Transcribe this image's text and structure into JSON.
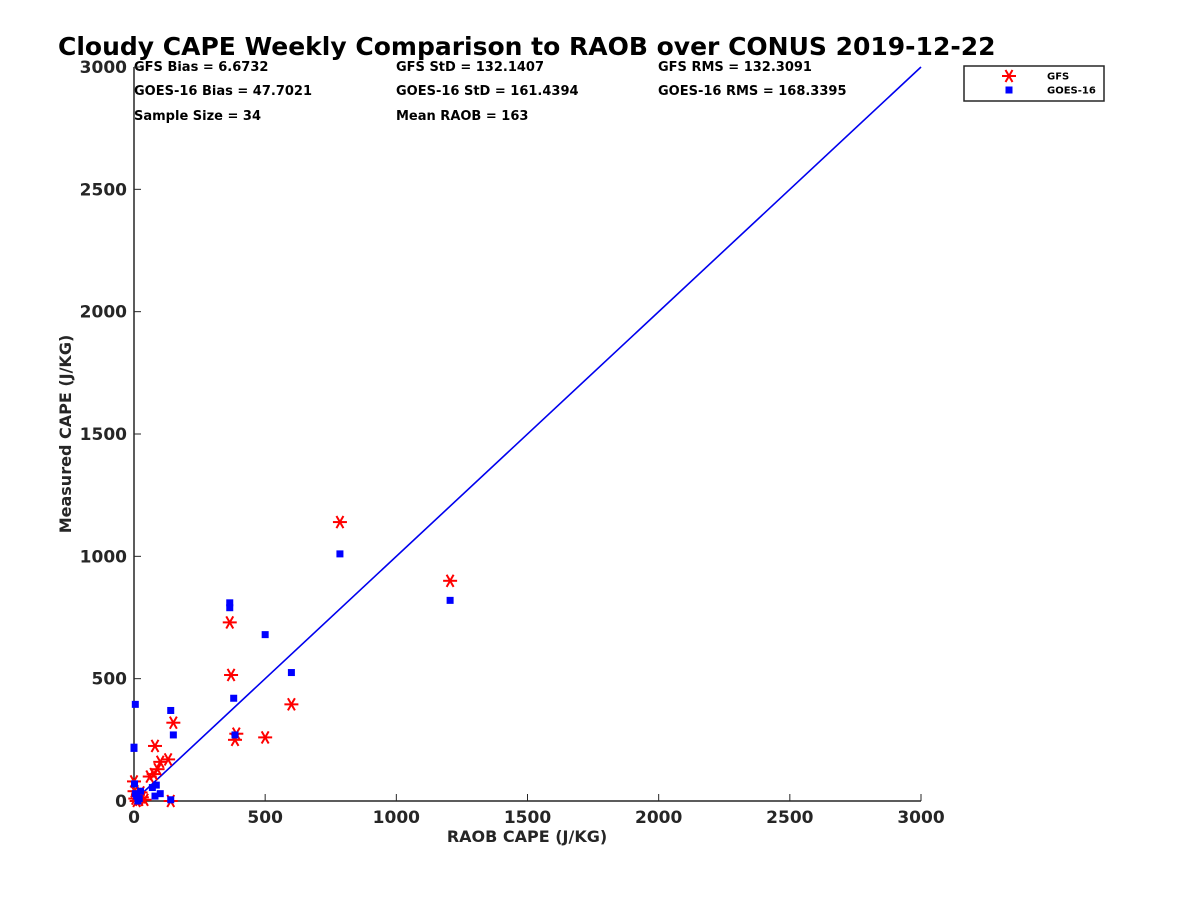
{
  "chart_data": {
    "type": "scatter",
    "title": "Cloudy CAPE Weekly Comparison to RAOB over CONUS 2019-12-22",
    "xlabel": "RAOB CAPE (J/KG)",
    "ylabel": "Measured CAPE (J/KG)",
    "xlim": [
      0,
      3000
    ],
    "ylim": [
      0,
      3000
    ],
    "xticks": [
      0,
      500,
      1000,
      1500,
      2000,
      2500,
      3000
    ],
    "yticks": [
      0,
      500,
      1000,
      1500,
      2000,
      2500,
      3000
    ],
    "grid": false,
    "legend_position": "top-right",
    "reference_line": {
      "color": "#0000ee",
      "points": [
        [
          0,
          0
        ],
        [
          3000,
          3000
        ]
      ]
    },
    "stats": [
      {
        "text": "GFS Bias = 6.6732"
      },
      {
        "text": "GFS StD = 132.1407"
      },
      {
        "text": "GFS RMS = 132.3091"
      },
      {
        "text": "GOES-16 Bias = 47.7021"
      },
      {
        "text": "GOES-16 StD = 161.4394"
      },
      {
        "text": "GOES-16 RMS = 168.3395"
      },
      {
        "text": "Sample Size = 34"
      },
      {
        "text": "Mean RAOB = 163"
      }
    ],
    "series": [
      {
        "name": "GFS",
        "color": "#ff0000",
        "marker": "asterisk",
        "points": [
          [
            0,
            80
          ],
          [
            2,
            40
          ],
          [
            5,
            10
          ],
          [
            10,
            0
          ],
          [
            15,
            25
          ],
          [
            20,
            5
          ],
          [
            25,
            35
          ],
          [
            30,
            15
          ],
          [
            40,
            5
          ],
          [
            60,
            100
          ],
          [
            75,
            110
          ],
          [
            80,
            225
          ],
          [
            90,
            130
          ],
          [
            100,
            160
          ],
          [
            130,
            170
          ],
          [
            140,
            0
          ],
          [
            150,
            320
          ],
          [
            365,
            730
          ],
          [
            370,
            515
          ],
          [
            385,
            250
          ],
          [
            390,
            275
          ],
          [
            500,
            260
          ],
          [
            600,
            395
          ],
          [
            785,
            1140
          ],
          [
            1205,
            900
          ]
        ]
      },
      {
        "name": "GOES-16",
        "color": "#0000ff",
        "marker": "square",
        "points": [
          [
            0,
            220
          ],
          [
            0,
            215
          ],
          [
            2,
            70
          ],
          [
            5,
            395
          ],
          [
            5,
            30
          ],
          [
            10,
            20
          ],
          [
            15,
            0
          ],
          [
            20,
            10
          ],
          [
            25,
            40
          ],
          [
            70,
            55
          ],
          [
            80,
            20
          ],
          [
            85,
            65
          ],
          [
            100,
            30
          ],
          [
            140,
            370
          ],
          [
            140,
            5
          ],
          [
            150,
            270
          ],
          [
            365,
            810
          ],
          [
            365,
            790
          ],
          [
            380,
            420
          ],
          [
            385,
            270
          ],
          [
            500,
            680
          ],
          [
            600,
            525
          ],
          [
            785,
            1010
          ],
          [
            1205,
            820
          ]
        ]
      }
    ]
  }
}
